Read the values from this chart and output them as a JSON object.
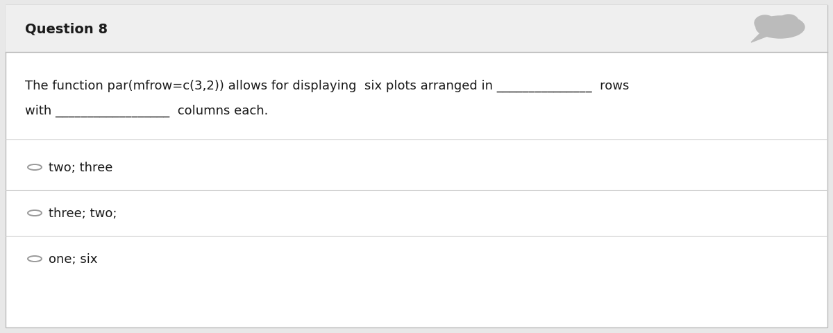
{
  "title": "Question 8",
  "title_fontsize": 14,
  "title_bg_color": "#efefef",
  "body_bg_color": "#ffffff",
  "outer_border_color": "#bbbbbb",
  "separator_color": "#d0d0d0",
  "question_text_line1": "The function par(mfrow=c(3,2)) allows for displaying  six plots arranged in _______________  rows",
  "question_text_line2": "with __________________  columns each.",
  "options": [
    "two; three",
    "three; two;",
    "one; six"
  ],
  "option_fontsize": 13,
  "question_fontsize": 13,
  "text_color": "#1a1a1a",
  "circle_color": "#999999",
  "icon_color": "#bbbbbb",
  "fig_bg_color": "#e8e8e8"
}
